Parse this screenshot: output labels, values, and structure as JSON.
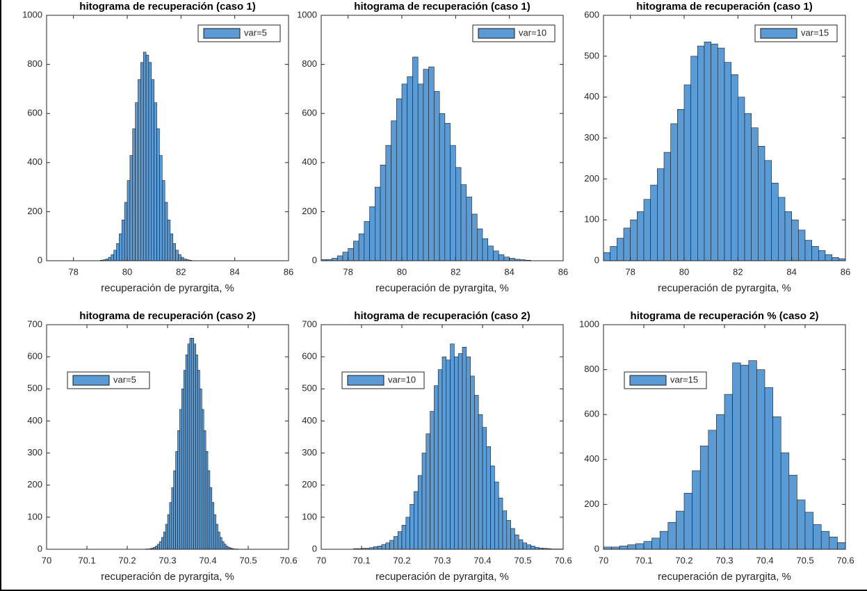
{
  "chart_data": [
    {
      "type": "histogram",
      "title": "hitograma de recuperación (caso 1)",
      "xlabel": "recuperación de pyrargita, %",
      "bins": [
        79.0,
        79.1,
        79.2,
        79.3,
        79.4,
        79.5,
        79.6,
        79.7,
        79.8,
        79.9,
        80.0,
        80.1,
        80.2,
        80.3,
        80.4,
        80.5,
        80.6,
        80.7,
        80.8,
        80.9,
        81.0,
        81.1,
        81.2,
        81.3,
        81.4,
        81.5,
        81.6,
        81.7,
        81.8,
        81.9,
        82.0,
        82.1,
        82.2,
        82.3,
        82.4
      ],
      "series": [
        {
          "name": "var=5",
          "color": "#5b9bd5",
          "values": [
            2,
            4,
            7,
            14,
            25,
            43,
            70,
            110,
            166,
            238,
            327,
            429,
            538,
            644,
            738,
            808,
            850,
            838,
            808,
            738,
            644,
            538,
            429,
            327,
            238,
            166,
            110,
            70,
            43,
            25,
            14,
            7,
            4,
            2
          ]
        }
      ],
      "xlim": [
        77,
        86
      ],
      "xticks": [
        78,
        80,
        82,
        84,
        86
      ],
      "ylim": [
        0,
        1000
      ],
      "yticks": [
        0,
        200,
        400,
        600,
        800,
        1000
      ],
      "legend": "northeast",
      "grid": false
    },
    {
      "type": "histogram",
      "title": "hitograma de recuperación (caso 1)",
      "xlabel": "recuperación de pyrargita, %",
      "bins": [
        77.0,
        77.2,
        77.4,
        77.6,
        77.8,
        78.0,
        78.2,
        78.4,
        78.6,
        78.8,
        79.0,
        79.2,
        79.4,
        79.6,
        79.8,
        80.0,
        80.2,
        80.4,
        80.6,
        80.8,
        81.0,
        81.2,
        81.4,
        81.6,
        81.8,
        82.0,
        82.2,
        82.4,
        82.6,
        82.8,
        83.0,
        83.2,
        83.4,
        83.6,
        83.8,
        84.0,
        84.2,
        84.4,
        84.6,
        84.8
      ],
      "series": [
        {
          "name": "var=10",
          "color": "#5b9bd5",
          "values": [
            5,
            5,
            10,
            20,
            35,
            50,
            80,
            110,
            160,
            220,
            300,
            390,
            470,
            570,
            660,
            720,
            750,
            830,
            720,
            780,
            790,
            690,
            600,
            560,
            470,
            380,
            310,
            260,
            190,
            130,
            90,
            60,
            40,
            25,
            15,
            10,
            6,
            4,
            2
          ]
        }
      ],
      "xlim": [
        77,
        86
      ],
      "xticks": [
        78,
        80,
        82,
        84,
        86
      ],
      "ylim": [
        0,
        1000
      ],
      "yticks": [
        0,
        200,
        400,
        600,
        800,
        1000
      ],
      "legend": "northeast",
      "grid": false
    },
    {
      "type": "histogram",
      "title": "hitograma de recuperación (caso 1)",
      "xlabel": "recuperación de pyrargita, %",
      "bins": [
        77.0,
        77.25,
        77.5,
        77.75,
        78.0,
        78.25,
        78.5,
        78.75,
        79.0,
        79.25,
        79.5,
        79.75,
        80.0,
        80.25,
        80.5,
        80.75,
        81.0,
        81.25,
        81.5,
        81.75,
        82.0,
        82.25,
        82.5,
        82.75,
        83.0,
        83.25,
        83.5,
        83.75,
        84.0,
        84.25,
        84.5,
        84.75,
        85.0,
        85.25,
        85.5,
        85.75,
        86.0
      ],
      "series": [
        {
          "name": "var=15",
          "color": "#5b9bd5",
          "values": [
            20,
            35,
            55,
            80,
            100,
            120,
            150,
            185,
            225,
            265,
            335,
            370,
            430,
            500,
            525,
            535,
            530,
            520,
            485,
            455,
            400,
            360,
            325,
            280,
            245,
            190,
            155,
            120,
            100,
            75,
            50,
            35,
            25,
            15,
            8,
            5
          ]
        }
      ],
      "xlim": [
        77,
        86
      ],
      "xticks": [
        78,
        80,
        82,
        84,
        86
      ],
      "ylim": [
        0,
        600
      ],
      "yticks": [
        0,
        100,
        200,
        300,
        400,
        500,
        600
      ],
      "legend": "northeast",
      "grid": false
    },
    {
      "type": "histogram",
      "title": "hitograma de recuperación (caso 2)",
      "xlabel": "recuperación de pyrargita, %",
      "bins": [
        70.24,
        70.245,
        70.25,
        70.255,
        70.26,
        70.265,
        70.27,
        70.275,
        70.28,
        70.285,
        70.29,
        70.295,
        70.3,
        70.305,
        70.31,
        70.315,
        70.32,
        70.325,
        70.33,
        70.335,
        70.34,
        70.345,
        70.35,
        70.355,
        70.36,
        70.365,
        70.37,
        70.375,
        70.38,
        70.385,
        70.39,
        70.395,
        70.4,
        70.405,
        70.41,
        70.415,
        70.42,
        70.425,
        70.43,
        70.435,
        70.44,
        70.445,
        70.45,
        70.455,
        70.46,
        70.465,
        70.47,
        70.475,
        70.48
      ],
      "series": [
        {
          "name": "var=5",
          "color": "#5b9bd5",
          "values": [
            0,
            1,
            1,
            2,
            4,
            6,
            10,
            16,
            24,
            37,
            54,
            78,
            108,
            146,
            192,
            245,
            305,
            370,
            436,
            500,
            558,
            606,
            640,
            658,
            658,
            640,
            606,
            558,
            500,
            436,
            370,
            305,
            245,
            192,
            146,
            108,
            78,
            54,
            37,
            24,
            16,
            10,
            6,
            4,
            2,
            1,
            1,
            0
          ]
        }
      ],
      "xlim": [
        70,
        70.6
      ],
      "xticks": [
        70,
        70.1,
        70.2,
        70.3,
        70.4,
        70.5,
        70.6
      ],
      "ylim": [
        0,
        700
      ],
      "yticks": [
        0,
        100,
        200,
        300,
        400,
        500,
        600,
        700
      ],
      "legend": "northwest",
      "grid": false
    },
    {
      "type": "histogram",
      "title": "hitograma de recuperación (caso 2)",
      "xlabel": "recuperación de pyrargita, %",
      "bins": [
        70.08,
        70.09,
        70.1,
        70.11,
        70.12,
        70.13,
        70.14,
        70.15,
        70.16,
        70.17,
        70.18,
        70.19,
        70.2,
        70.21,
        70.22,
        70.23,
        70.24,
        70.25,
        70.26,
        70.27,
        70.28,
        70.29,
        70.3,
        70.31,
        70.32,
        70.33,
        70.34,
        70.35,
        70.36,
        70.37,
        70.38,
        70.39,
        70.4,
        70.41,
        70.42,
        70.43,
        70.44,
        70.45,
        70.46,
        70.47,
        70.48,
        70.49,
        70.5,
        70.51,
        70.52,
        70.53,
        70.54,
        70.55,
        70.56,
        70.57,
        70.58,
        70.59,
        70.6
      ],
      "series": [
        {
          "name": "var=10",
          "color": "#5b9bd5",
          "values": [
            2,
            2,
            3,
            3,
            5,
            8,
            10,
            15,
            20,
            28,
            40,
            55,
            75,
            100,
            140,
            180,
            230,
            300,
            360,
            430,
            510,
            560,
            600,
            590,
            640,
            600,
            610,
            630,
            600,
            540,
            480,
            420,
            380,
            320,
            260,
            210,
            160,
            120,
            90,
            65,
            45,
            30,
            20,
            14,
            10,
            6,
            4,
            3,
            2,
            1,
            1,
            1
          ]
        }
      ],
      "xlim": [
        70,
        70.6
      ],
      "xticks": [
        70,
        70.1,
        70.2,
        70.3,
        70.4,
        70.5,
        70.6
      ],
      "ylim": [
        0,
        700
      ],
      "yticks": [
        0,
        100,
        200,
        300,
        400,
        500,
        600,
        700
      ],
      "legend": "northwest",
      "grid": false
    },
    {
      "type": "histogram",
      "title": "hitograma de recuperación % (caso 2)",
      "xlabel": "recuperación de pyrargita, %",
      "bins": [
        70.0,
        70.02,
        70.04,
        70.06,
        70.08,
        70.1,
        70.12,
        70.14,
        70.16,
        70.18,
        70.2,
        70.22,
        70.24,
        70.26,
        70.28,
        70.3,
        70.32,
        70.34,
        70.36,
        70.38,
        70.4,
        70.42,
        70.44,
        70.46,
        70.48,
        70.5,
        70.52,
        70.54,
        70.56,
        70.58,
        70.6
      ],
      "series": [
        {
          "name": "var=15",
          "color": "#5b9bd5",
          "values": [
            10,
            10,
            15,
            20,
            25,
            35,
            50,
            80,
            120,
            170,
            250,
            350,
            460,
            530,
            600,
            690,
            830,
            820,
            840,
            800,
            720,
            590,
            430,
            330,
            220,
            165,
            110,
            80,
            55,
            30
          ]
        }
      ],
      "xlim": [
        70,
        70.6
      ],
      "xticks": [
        70,
        70.1,
        70.2,
        70.3,
        70.4,
        70.5,
        70.6
      ],
      "ylim": [
        0,
        1000
      ],
      "yticks": [
        0,
        200,
        400,
        600,
        800,
        1000
      ],
      "legend": "northwest",
      "grid": false
    }
  ]
}
